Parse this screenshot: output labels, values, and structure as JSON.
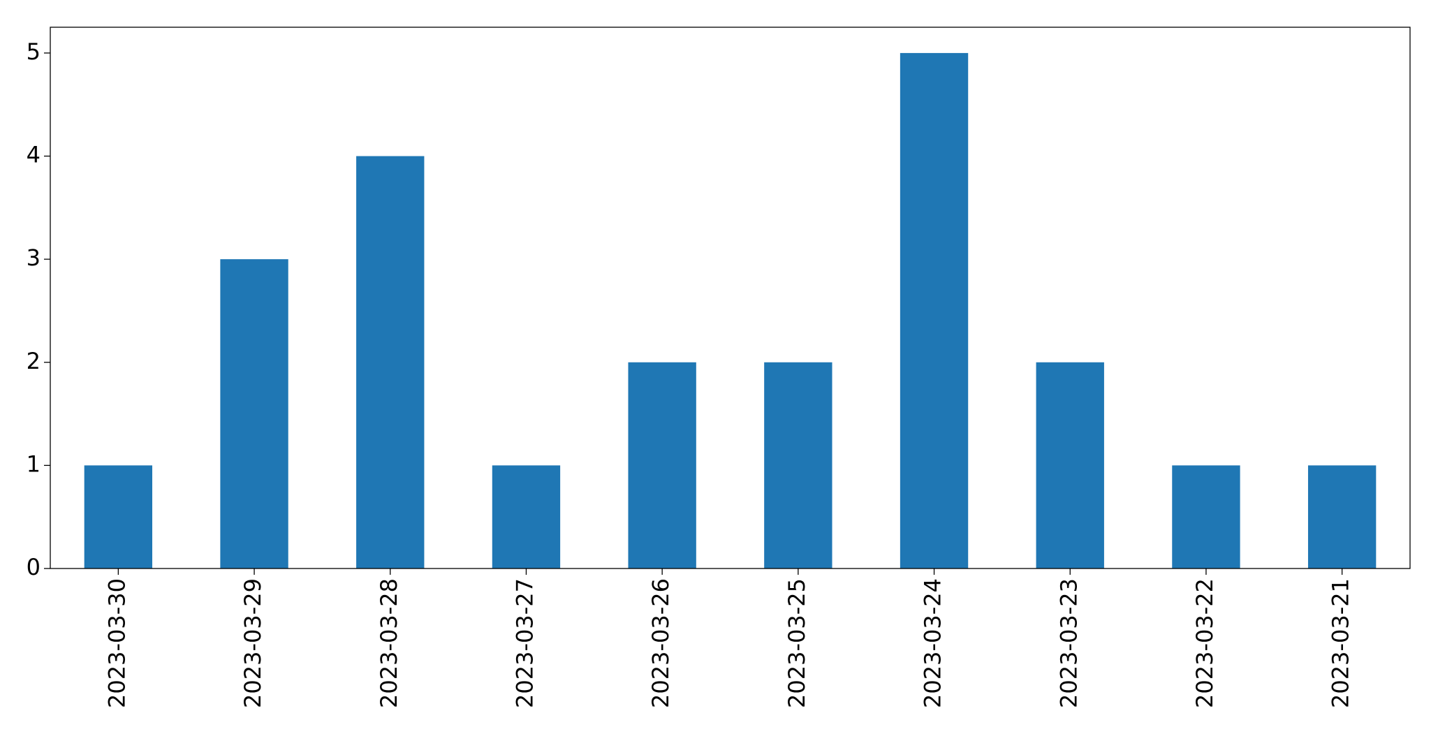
{
  "chart_data": {
    "type": "bar",
    "categories": [
      "2023-03-30",
      "2023-03-29",
      "2023-03-28",
      "2023-03-27",
      "2023-03-26",
      "2023-03-25",
      "2023-03-24",
      "2023-03-23",
      "2023-03-22",
      "2023-03-21"
    ],
    "values": [
      1,
      3,
      4,
      1,
      2,
      2,
      5,
      2,
      1,
      1
    ],
    "color": "#1f77b4",
    "ylim": [
      0,
      5.25
    ],
    "yticks": [
      0,
      1,
      2,
      3,
      4,
      5
    ],
    "grid": false
  }
}
